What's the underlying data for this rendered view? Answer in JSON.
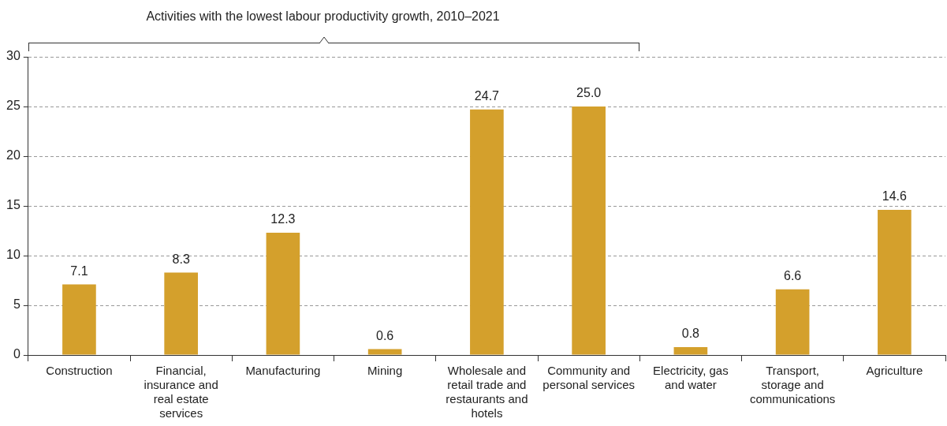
{
  "chart_data": {
    "type": "bar",
    "annotations": [
      "Activities with the lowest labour productivity growth, 2010–2021"
    ],
    "categories": [
      "Construction",
      "Financial, insurance and real estate services",
      "Manufacturing",
      "Mining",
      "Wholesale and retail trade and restaurants and hotels",
      "Community and personal services",
      "Electricity, gas and water",
      "Transport, storage and communications",
      "Agriculture"
    ],
    "values": [
      7.1,
      8.3,
      12.3,
      0.6,
      24.7,
      25.0,
      0.8,
      6.6,
      14.6
    ],
    "value_labels": [
      "7.1",
      "8.3",
      "12.3",
      "0.6",
      "24.7",
      "25.0",
      "0.8",
      "6.6",
      "14.6"
    ],
    "color": "#d4a02c",
    "ylim": [
      0,
      30
    ],
    "yticks": [
      0,
      5,
      10,
      15,
      20,
      25,
      30
    ],
    "grid": "y",
    "legend": false
  }
}
